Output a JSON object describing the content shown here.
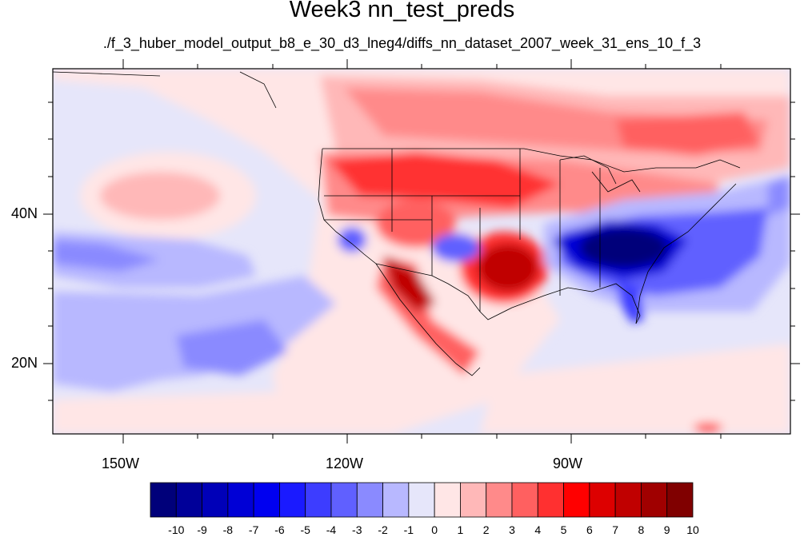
{
  "title": "Week3 nn_test_preds",
  "subtitle": "./f_3_huber_model_output_b8_e_30_d3_lneg4/diffs_nn_dataset_2007_week_31_ens_10_f_3",
  "axes": {
    "lat_labels": [
      "40N",
      "20N"
    ],
    "lon_labels": [
      "150W",
      "120W",
      "90W"
    ]
  },
  "colorbar": {
    "labels": [
      "-10",
      "-9",
      "-8",
      "-7",
      "-6",
      "-5",
      "-4",
      "-3",
      "-2",
      "-1",
      "0",
      "1",
      "2",
      "3",
      "4",
      "5",
      "6",
      "7",
      "8",
      "9",
      "10"
    ],
    "colors": [
      "#00007a",
      "#000099",
      "#0000b8",
      "#0000d6",
      "#0000f0",
      "#1a1aff",
      "#3d3dff",
      "#6060ff",
      "#8a8aff",
      "#b8b8ff",
      "#e6e6fa",
      "#ffe6e6",
      "#ffb8b8",
      "#ff8a8a",
      "#ff6060",
      "#ff3030",
      "#ff0000",
      "#dd0000",
      "#c00000",
      "#a00000",
      "#800000"
    ]
  }
}
